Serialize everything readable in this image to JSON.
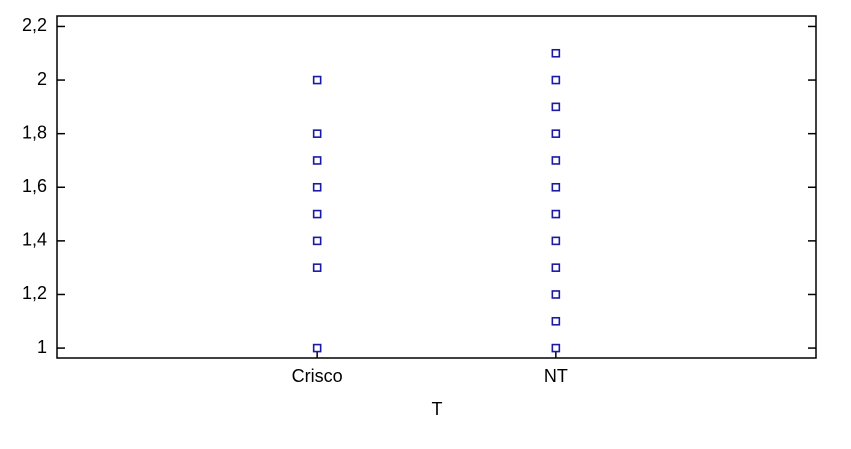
{
  "chart_data": {
    "type": "strip",
    "x_label": "T",
    "categories": [
      "Crisco",
      "NT"
    ],
    "values": [
      [
        2.0,
        1.8,
        1.7,
        1.6,
        1.5,
        1.4,
        1.3,
        1.0
      ],
      [
        2.1,
        2.0,
        1.9,
        1.8,
        1.7,
        1.6,
        1.5,
        1.4,
        1.3,
        1.2,
        1.1,
        1.0
      ]
    ],
    "color": "#1a1aa6",
    "ylim": [
      0.963,
      2.239
    ],
    "yticks": [
      1,
      {
        "value": 1.2,
        "label": "1,2"
      },
      {
        "value": 1.4,
        "label": "1,4"
      },
      {
        "value": 1.6,
        "label": "1,6"
      },
      {
        "value": 1.8,
        "label": "1,8"
      },
      2,
      {
        "value": 2.2,
        "label": "2,2"
      }
    ]
  }
}
